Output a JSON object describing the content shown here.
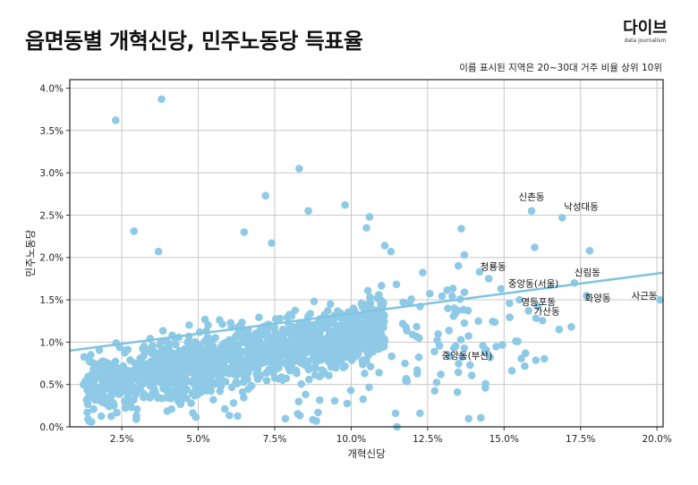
{
  "title": "읍면동별 개혁신당, 민주노동당 득표율",
  "logo": {
    "main": "다이브",
    "sub": "data journalism"
  },
  "subtitle": "이름 표시된 지역은 20~30대 거주 비율 상위 10위",
  "colors": {
    "point": "#8ecae6",
    "trend": "#7fc4e2",
    "grid": "#c8c8c8"
  },
  "chart_data": {
    "type": "scatter",
    "xlabel": "개혁신당",
    "ylabel": "민주노동당",
    "xlim": [
      0.8,
      20.2
    ],
    "ylim": [
      0,
      4.1
    ],
    "x_ticks": [
      2.5,
      5.0,
      7.5,
      10.0,
      12.5,
      15.0,
      17.5,
      20.0
    ],
    "x_tick_labels": [
      "2.5%",
      "5.0%",
      "7.5%",
      "10.0%",
      "12.5%",
      "15.0%",
      "17.5%",
      "20.0%"
    ],
    "y_ticks": [
      0.0,
      0.5,
      1.0,
      1.5,
      2.0,
      2.5,
      3.0,
      3.5,
      4.0
    ],
    "y_tick_labels": [
      "0.0%",
      "0.5%",
      "1.0%",
      "1.5%",
      "2.0%",
      "2.5%",
      "3.0%",
      "3.5%",
      "4.0%"
    ],
    "trend": {
      "x": [
        0.8,
        20.2
      ],
      "y": [
        0.9,
        1.82
      ]
    },
    "labeled_points": [
      {
        "name": "신촌동",
        "x": 15.9,
        "y": 2.55
      },
      {
        "name": "낙성대동",
        "x": 16.9,
        "y": 2.47
      },
      {
        "name": "청룡동",
        "x": 14.5,
        "y": 1.75
      },
      {
        "name": "중앙동(서울)",
        "x": 14.9,
        "y": 1.63
      },
      {
        "name": "신림동",
        "x": 17.3,
        "y": 1.7
      },
      {
        "name": "영등포동",
        "x": 15.5,
        "y": 1.5
      },
      {
        "name": "화양동",
        "x": 17.7,
        "y": 1.55
      },
      {
        "name": "사근동",
        "x": 20.1,
        "y": 1.5
      },
      {
        "name": "가산동",
        "x": 15.8,
        "y": 1.37
      },
      {
        "name": "중앙동(부산)",
        "x": 13.7,
        "y": 0.93
      }
    ],
    "notable_points": [
      {
        "x": 3.8,
        "y": 3.87
      },
      {
        "x": 2.3,
        "y": 3.62
      },
      {
        "x": 8.3,
        "y": 3.05
      },
      {
        "x": 7.2,
        "y": 2.73
      },
      {
        "x": 9.8,
        "y": 2.62
      },
      {
        "x": 8.6,
        "y": 2.55
      },
      {
        "x": 10.6,
        "y": 2.48
      },
      {
        "x": 2.9,
        "y": 2.31
      },
      {
        "x": 6.5,
        "y": 2.3
      },
      {
        "x": 10.5,
        "y": 2.35
      },
      {
        "x": 13.6,
        "y": 2.34
      },
      {
        "x": 3.7,
        "y": 2.07
      },
      {
        "x": 16.0,
        "y": 2.12
      },
      {
        "x": 17.8,
        "y": 2.08
      },
      {
        "x": 11.3,
        "y": 2.07
      },
      {
        "x": 13.7,
        "y": 2.03
      },
      {
        "x": 7.4,
        "y": 2.17
      },
      {
        "x": 11.1,
        "y": 2.14
      },
      {
        "x": 14.2,
        "y": 1.83
      },
      {
        "x": 15.7,
        "y": 0.87
      },
      {
        "x": 16.8,
        "y": 1.15
      },
      {
        "x": 17.2,
        "y": 1.18
      },
      {
        "x": 11.5,
        "y": 0.0
      }
    ]
  }
}
